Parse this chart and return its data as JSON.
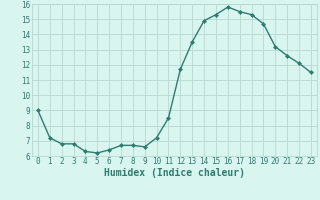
{
  "x": [
    0,
    1,
    2,
    3,
    4,
    5,
    6,
    7,
    8,
    9,
    10,
    11,
    12,
    13,
    14,
    15,
    16,
    17,
    18,
    19,
    20,
    21,
    22,
    23
  ],
  "y": [
    9.0,
    7.2,
    6.8,
    6.8,
    6.3,
    6.2,
    6.4,
    6.7,
    6.7,
    6.6,
    7.2,
    8.5,
    11.7,
    13.5,
    14.9,
    15.3,
    15.8,
    15.5,
    15.3,
    14.7,
    13.2,
    12.6,
    12.1,
    11.5
  ],
  "xlim_min": -0.5,
  "xlim_max": 23.5,
  "ylim_min": 6,
  "ylim_max": 16,
  "yticks": [
    6,
    7,
    8,
    9,
    10,
    11,
    12,
    13,
    14,
    15,
    16
  ],
  "xticks": [
    0,
    1,
    2,
    3,
    4,
    5,
    6,
    7,
    8,
    9,
    10,
    11,
    12,
    13,
    14,
    15,
    16,
    17,
    18,
    19,
    20,
    21,
    22,
    23
  ],
  "xlabel": "Humidex (Indice chaleur)",
  "line_color": "#2e7d6e",
  "marker": "D",
  "marker_size": 2.0,
  "bg_color": "#d8f5f0",
  "grid_color": "#b8d8d4",
  "tick_color": "#2e7d6e",
  "label_fontsize": 6.5,
  "tick_fontsize": 5.5,
  "xlabel_fontsize": 7.0
}
